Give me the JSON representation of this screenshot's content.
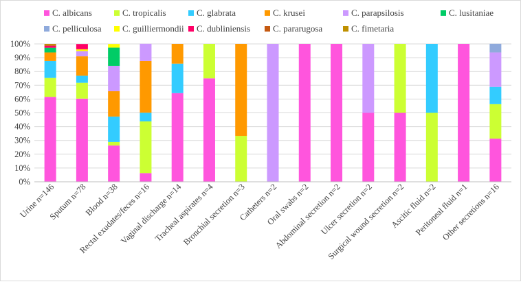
{
  "chart_data": {
    "type": "bar",
    "stacked": true,
    "normalized_percent": true,
    "categories": [
      "Urine n=146",
      "Sputum n=78",
      "Blood n=38",
      "Rectal exudates/feces n=16",
      "Vaginal discharge n=14",
      "Tracheal aspirates n=4",
      "Bronchial secretion n=3",
      "Catheters n=2",
      "Oral swabs n=2",
      "Abdominal secretion n=2",
      "Ulcer secretion n=2",
      "Surgical wound secretion n=2",
      "Ascitic fluid n=2",
      "Peritoneal fluid n=1",
      "Other secretions n=16"
    ],
    "series": [
      {
        "name": "C. albicans",
        "color": "#ff55dd",
        "values": [
          61.6,
          60.3,
          26.3,
          6.3,
          64.3,
          75,
          0,
          0,
          100,
          100,
          50,
          50,
          0,
          100,
          31.3
        ]
      },
      {
        "name": "C. tropicalis",
        "color": "#ccff33",
        "values": [
          13.7,
          11.5,
          2.6,
          37.5,
          0,
          25,
          33.3,
          0,
          0,
          0,
          0,
          50,
          50,
          0,
          25
        ]
      },
      {
        "name": "C. glabrata",
        "color": "#33ccff",
        "values": [
          12.3,
          5.1,
          18.4,
          6.3,
          21.4,
          0,
          0,
          0,
          0,
          0,
          0,
          0,
          50,
          0,
          12.5
        ]
      },
      {
        "name": "C. krusei",
        "color": "#ff9900",
        "values": [
          6.2,
          14.1,
          18.4,
          37.5,
          14.3,
          0,
          66.7,
          0,
          0,
          0,
          0,
          0,
          0,
          0,
          0
        ]
      },
      {
        "name": "C. parapsilosis",
        "color": "#cc99ff",
        "values": [
          0,
          3.8,
          18.4,
          12.5,
          0,
          0,
          0,
          100,
          0,
          0,
          50,
          0,
          0,
          0,
          25
        ]
      },
      {
        "name": "C. lusitaniae",
        "color": "#00cc66",
        "values": [
          3.4,
          0,
          13.2,
          0,
          0,
          0,
          0,
          0,
          0,
          0,
          0,
          0,
          0,
          0,
          0
        ]
      },
      {
        "name": "C. pelliculosa",
        "color": "#8faadc",
        "values": [
          0,
          0,
          0,
          0,
          0,
          0,
          0,
          0,
          0,
          0,
          0,
          0,
          0,
          0,
          6.3
        ]
      },
      {
        "name": "C. guilliermondii",
        "color": "#ffff00",
        "values": [
          0,
          1.3,
          2.6,
          0,
          0,
          0,
          0,
          0,
          0,
          0,
          0,
          0,
          0,
          0,
          0
        ]
      },
      {
        "name": "C. dubliniensis",
        "color": "#ff0066",
        "values": [
          1.4,
          3.8,
          0,
          0,
          0,
          0,
          0,
          0,
          0,
          0,
          0,
          0,
          0,
          0,
          0
        ]
      },
      {
        "name": "C. pararugosa",
        "color": "#c55a11",
        "values": [
          0.7,
          0,
          0,
          0,
          0,
          0,
          0,
          0,
          0,
          0,
          0,
          0,
          0,
          0,
          0
        ]
      },
      {
        "name": "C. fimetaria",
        "color": "#bf9000",
        "values": [
          0.7,
          0,
          0,
          0,
          0,
          0,
          0,
          0,
          0,
          0,
          0,
          0,
          0,
          0,
          0
        ]
      }
    ],
    "yticks": [
      "0%",
      "10%",
      "20%",
      "30%",
      "40%",
      "50%",
      "60%",
      "70%",
      "80%",
      "90%",
      "100%"
    ],
    "ylim": [
      0,
      100
    ],
    "grid": true,
    "legend_position": "top"
  }
}
